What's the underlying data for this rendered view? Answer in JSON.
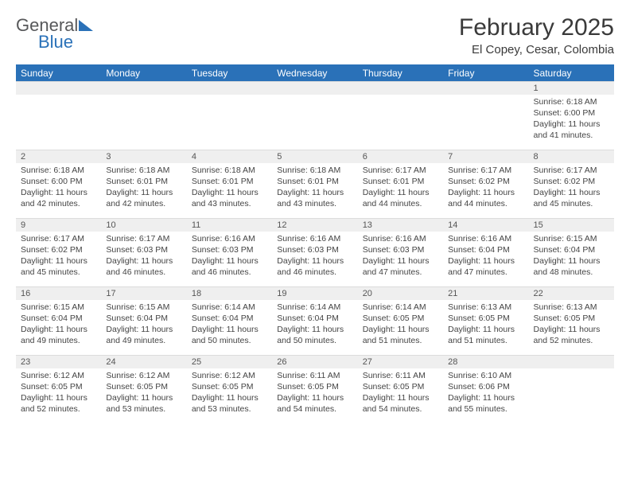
{
  "logo": {
    "word1": "General",
    "word2": "Blue"
  },
  "title": "February 2025",
  "subtitle": "El Copey, Cesar, Colombia",
  "day_headers": [
    "Sunday",
    "Monday",
    "Tuesday",
    "Wednesday",
    "Thursday",
    "Friday",
    "Saturday"
  ],
  "colors": {
    "header_bg": "#2a71b8",
    "header_text": "#ffffff",
    "daynum_bg": "#efefef",
    "text": "#444444",
    "title_text": "#3a3a3a"
  },
  "weeks": [
    [
      null,
      null,
      null,
      null,
      null,
      null,
      {
        "n": "1",
        "sunrise": "Sunrise: 6:18 AM",
        "sunset": "Sunset: 6:00 PM",
        "day1": "Daylight: 11 hours",
        "day2": "and 41 minutes."
      }
    ],
    [
      {
        "n": "2",
        "sunrise": "Sunrise: 6:18 AM",
        "sunset": "Sunset: 6:00 PM",
        "day1": "Daylight: 11 hours",
        "day2": "and 42 minutes."
      },
      {
        "n": "3",
        "sunrise": "Sunrise: 6:18 AM",
        "sunset": "Sunset: 6:01 PM",
        "day1": "Daylight: 11 hours",
        "day2": "and 42 minutes."
      },
      {
        "n": "4",
        "sunrise": "Sunrise: 6:18 AM",
        "sunset": "Sunset: 6:01 PM",
        "day1": "Daylight: 11 hours",
        "day2": "and 43 minutes."
      },
      {
        "n": "5",
        "sunrise": "Sunrise: 6:18 AM",
        "sunset": "Sunset: 6:01 PM",
        "day1": "Daylight: 11 hours",
        "day2": "and 43 minutes."
      },
      {
        "n": "6",
        "sunrise": "Sunrise: 6:17 AM",
        "sunset": "Sunset: 6:01 PM",
        "day1": "Daylight: 11 hours",
        "day2": "and 44 minutes."
      },
      {
        "n": "7",
        "sunrise": "Sunrise: 6:17 AM",
        "sunset": "Sunset: 6:02 PM",
        "day1": "Daylight: 11 hours",
        "day2": "and 44 minutes."
      },
      {
        "n": "8",
        "sunrise": "Sunrise: 6:17 AM",
        "sunset": "Sunset: 6:02 PM",
        "day1": "Daylight: 11 hours",
        "day2": "and 45 minutes."
      }
    ],
    [
      {
        "n": "9",
        "sunrise": "Sunrise: 6:17 AM",
        "sunset": "Sunset: 6:02 PM",
        "day1": "Daylight: 11 hours",
        "day2": "and 45 minutes."
      },
      {
        "n": "10",
        "sunrise": "Sunrise: 6:17 AM",
        "sunset": "Sunset: 6:03 PM",
        "day1": "Daylight: 11 hours",
        "day2": "and 46 minutes."
      },
      {
        "n": "11",
        "sunrise": "Sunrise: 6:16 AM",
        "sunset": "Sunset: 6:03 PM",
        "day1": "Daylight: 11 hours",
        "day2": "and 46 minutes."
      },
      {
        "n": "12",
        "sunrise": "Sunrise: 6:16 AM",
        "sunset": "Sunset: 6:03 PM",
        "day1": "Daylight: 11 hours",
        "day2": "and 46 minutes."
      },
      {
        "n": "13",
        "sunrise": "Sunrise: 6:16 AM",
        "sunset": "Sunset: 6:03 PM",
        "day1": "Daylight: 11 hours",
        "day2": "and 47 minutes."
      },
      {
        "n": "14",
        "sunrise": "Sunrise: 6:16 AM",
        "sunset": "Sunset: 6:04 PM",
        "day1": "Daylight: 11 hours",
        "day2": "and 47 minutes."
      },
      {
        "n": "15",
        "sunrise": "Sunrise: 6:15 AM",
        "sunset": "Sunset: 6:04 PM",
        "day1": "Daylight: 11 hours",
        "day2": "and 48 minutes."
      }
    ],
    [
      {
        "n": "16",
        "sunrise": "Sunrise: 6:15 AM",
        "sunset": "Sunset: 6:04 PM",
        "day1": "Daylight: 11 hours",
        "day2": "and 49 minutes."
      },
      {
        "n": "17",
        "sunrise": "Sunrise: 6:15 AM",
        "sunset": "Sunset: 6:04 PM",
        "day1": "Daylight: 11 hours",
        "day2": "and 49 minutes."
      },
      {
        "n": "18",
        "sunrise": "Sunrise: 6:14 AM",
        "sunset": "Sunset: 6:04 PM",
        "day1": "Daylight: 11 hours",
        "day2": "and 50 minutes."
      },
      {
        "n": "19",
        "sunrise": "Sunrise: 6:14 AM",
        "sunset": "Sunset: 6:04 PM",
        "day1": "Daylight: 11 hours",
        "day2": "and 50 minutes."
      },
      {
        "n": "20",
        "sunrise": "Sunrise: 6:14 AM",
        "sunset": "Sunset: 6:05 PM",
        "day1": "Daylight: 11 hours",
        "day2": "and 51 minutes."
      },
      {
        "n": "21",
        "sunrise": "Sunrise: 6:13 AM",
        "sunset": "Sunset: 6:05 PM",
        "day1": "Daylight: 11 hours",
        "day2": "and 51 minutes."
      },
      {
        "n": "22",
        "sunrise": "Sunrise: 6:13 AM",
        "sunset": "Sunset: 6:05 PM",
        "day1": "Daylight: 11 hours",
        "day2": "and 52 minutes."
      }
    ],
    [
      {
        "n": "23",
        "sunrise": "Sunrise: 6:12 AM",
        "sunset": "Sunset: 6:05 PM",
        "day1": "Daylight: 11 hours",
        "day2": "and 52 minutes."
      },
      {
        "n": "24",
        "sunrise": "Sunrise: 6:12 AM",
        "sunset": "Sunset: 6:05 PM",
        "day1": "Daylight: 11 hours",
        "day2": "and 53 minutes."
      },
      {
        "n": "25",
        "sunrise": "Sunrise: 6:12 AM",
        "sunset": "Sunset: 6:05 PM",
        "day1": "Daylight: 11 hours",
        "day2": "and 53 minutes."
      },
      {
        "n": "26",
        "sunrise": "Sunrise: 6:11 AM",
        "sunset": "Sunset: 6:05 PM",
        "day1": "Daylight: 11 hours",
        "day2": "and 54 minutes."
      },
      {
        "n": "27",
        "sunrise": "Sunrise: 6:11 AM",
        "sunset": "Sunset: 6:05 PM",
        "day1": "Daylight: 11 hours",
        "day2": "and 54 minutes."
      },
      {
        "n": "28",
        "sunrise": "Sunrise: 6:10 AM",
        "sunset": "Sunset: 6:06 PM",
        "day1": "Daylight: 11 hours",
        "day2": "and 55 minutes."
      },
      null
    ]
  ]
}
